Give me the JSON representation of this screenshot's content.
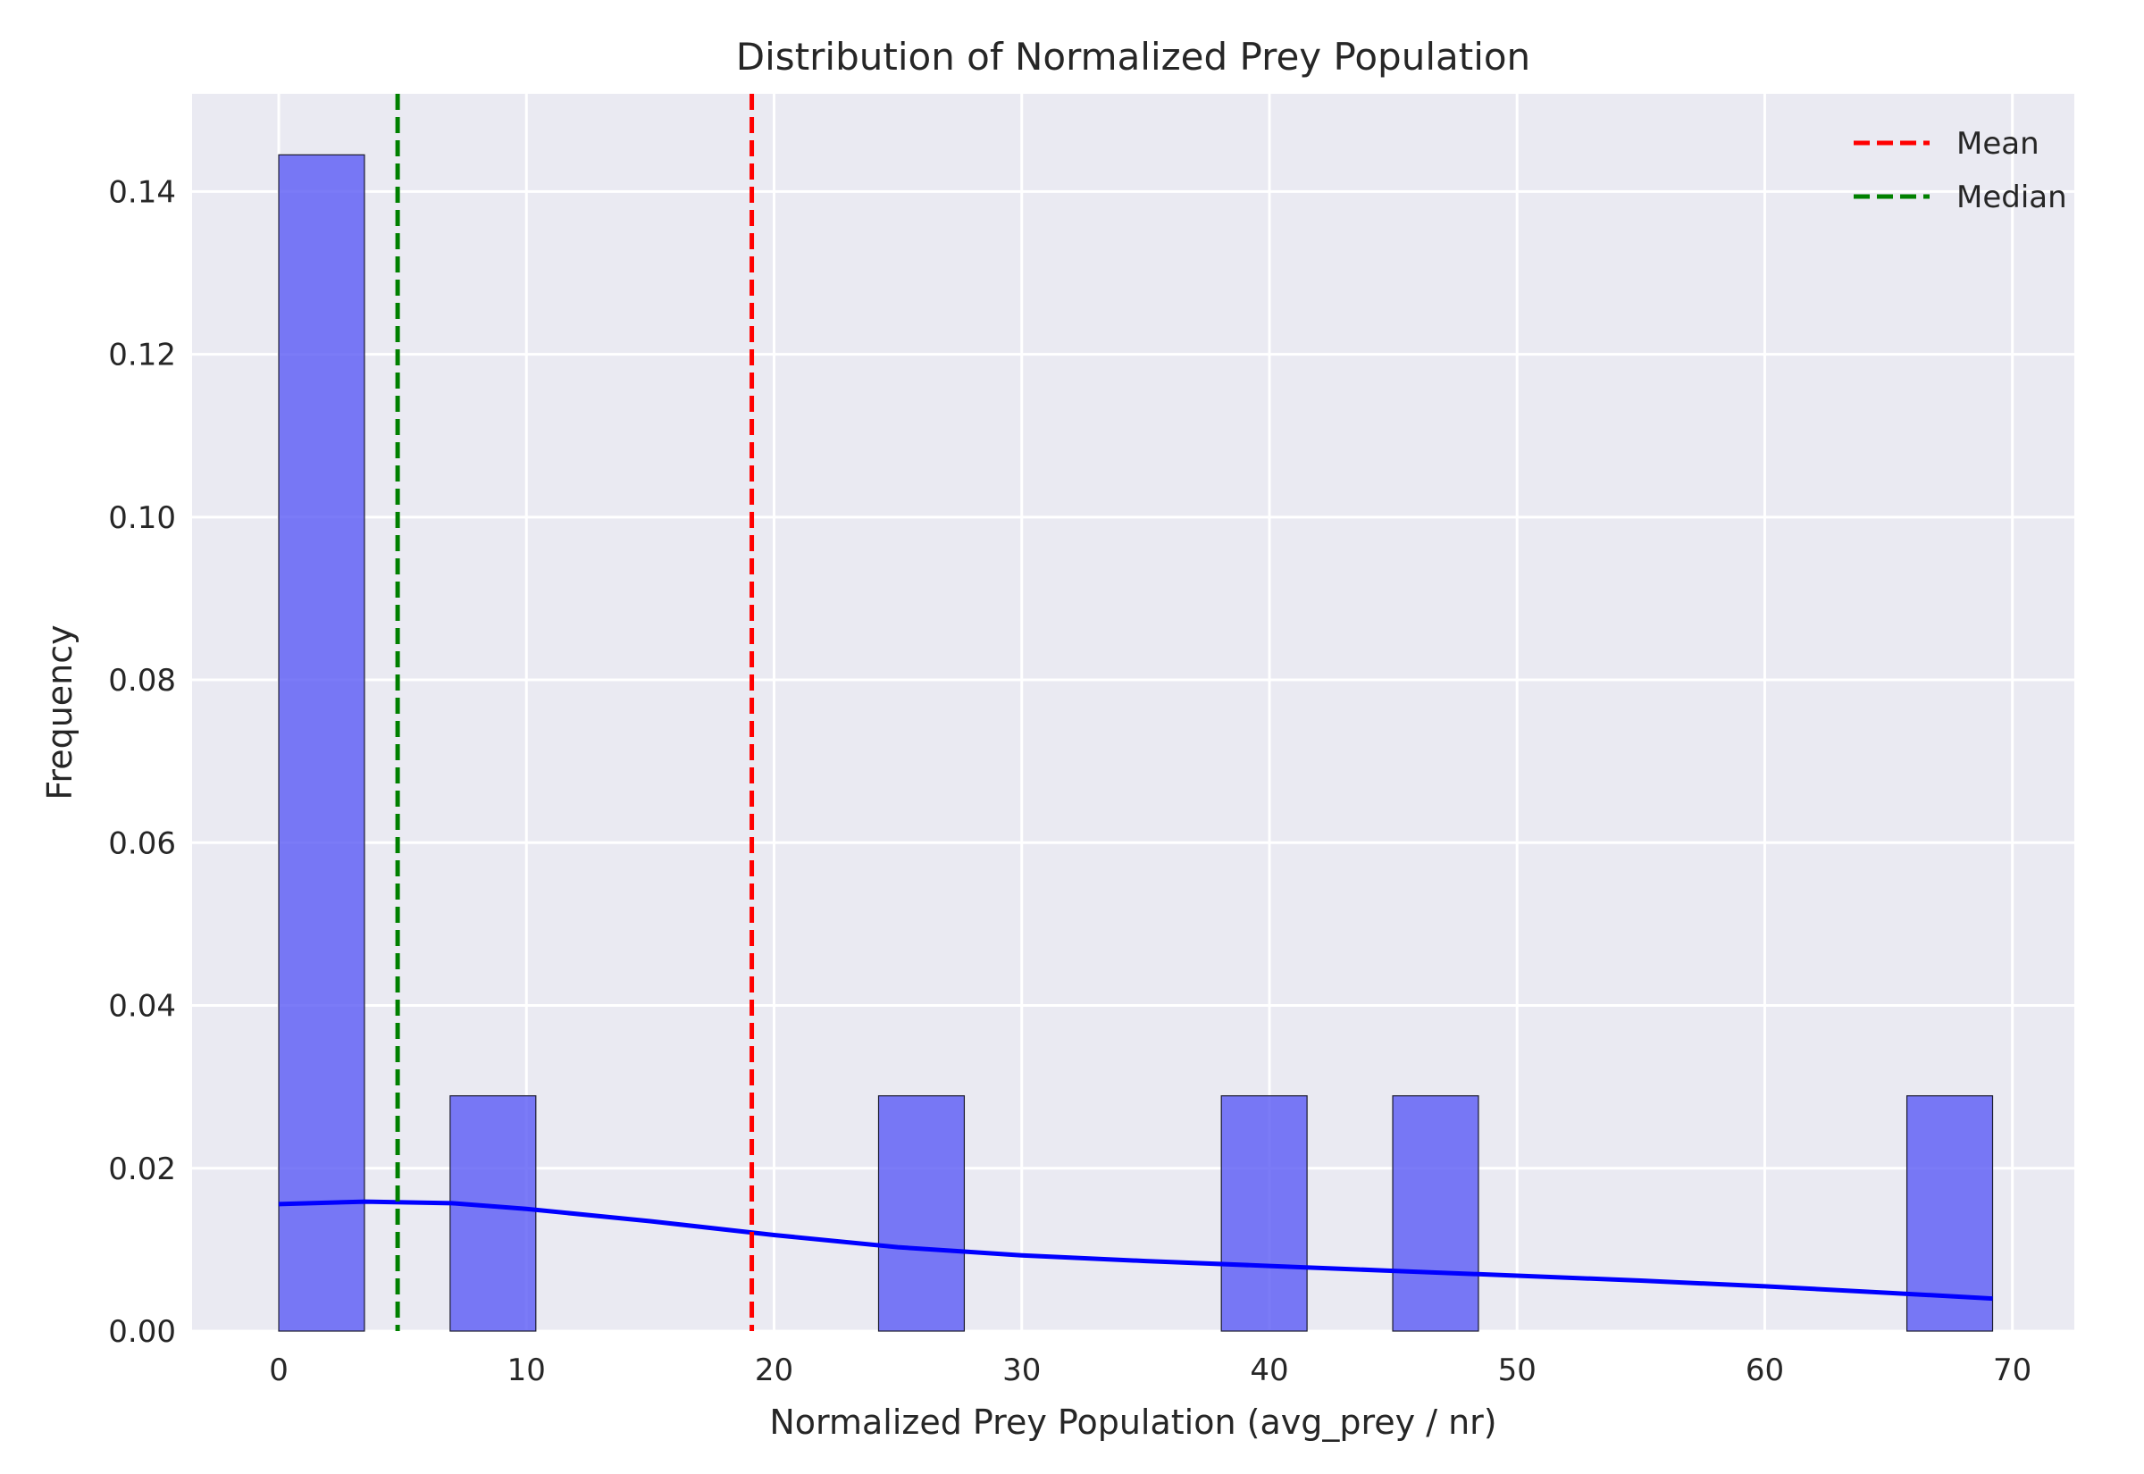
{
  "chart_data": {
    "type": "bar",
    "title": "Distribution of Normalized Prey Population",
    "xlabel": "Normalized Prey Population (avg_prey / nr)",
    "ylabel": "Frequency",
    "xlim": [
      -3.5,
      72.5
    ],
    "ylim": [
      0,
      0.152
    ],
    "xticks": [
      0,
      10,
      20,
      30,
      40,
      50,
      60,
      70
    ],
    "yticks": [
      0.0,
      0.02,
      0.04,
      0.06,
      0.08,
      0.1,
      0.12,
      0.14
    ],
    "ytick_decimals": 2,
    "grid": true,
    "legend_position": "top-right",
    "bar_color": "#5a5af5",
    "bar_edge_color": "#1a1a2e",
    "bins": [
      {
        "x0": 0.0,
        "x1": 3.46,
        "value": 0.1445
      },
      {
        "x0": 6.92,
        "x1": 10.38,
        "value": 0.0289
      },
      {
        "x0": 24.22,
        "x1": 27.68,
        "value": 0.0289
      },
      {
        "x0": 38.06,
        "x1": 41.52,
        "value": 0.0289
      },
      {
        "x0": 44.98,
        "x1": 48.44,
        "value": 0.0289
      },
      {
        "x0": 65.74,
        "x1": 69.2,
        "value": 0.0289
      }
    ],
    "kde": {
      "color": "#0000ff",
      "x": [
        0,
        3.5,
        7,
        10,
        15,
        20,
        25,
        30,
        35,
        40,
        45,
        50,
        55,
        60,
        65,
        69.2
      ],
      "y": [
        0.0156,
        0.0159,
        0.0157,
        0.015,
        0.0135,
        0.0118,
        0.0103,
        0.0093,
        0.0086,
        0.008,
        0.0074,
        0.0068,
        0.0062,
        0.0055,
        0.0047,
        0.004
      ]
    },
    "reference_lines": [
      {
        "name": "Mean",
        "x": 19.1,
        "color": "#ff0000"
      },
      {
        "name": "Median",
        "x": 4.8,
        "color": "#008000"
      }
    ]
  }
}
